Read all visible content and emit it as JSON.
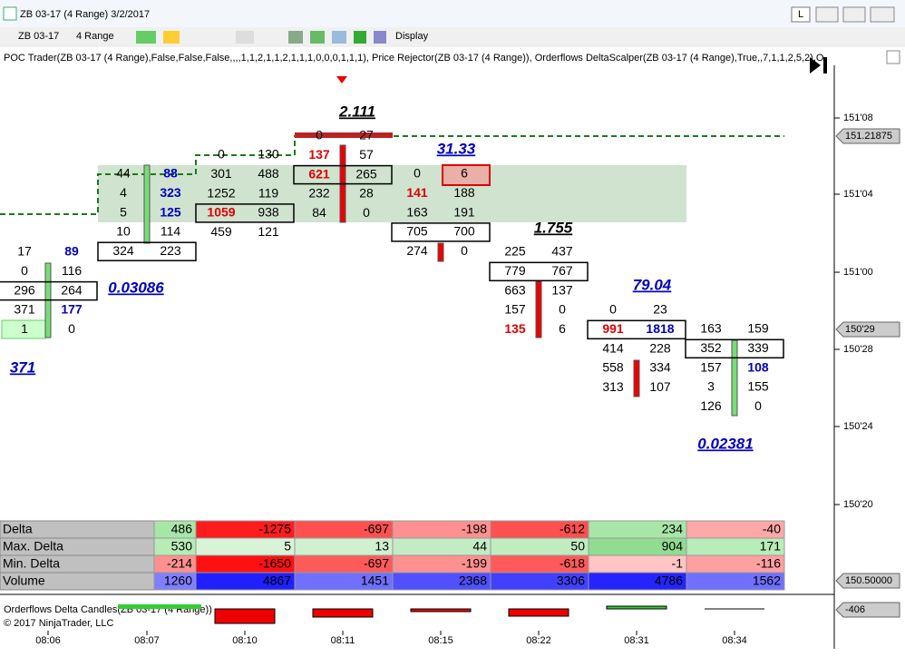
{
  "window": {
    "title": "ZB 03-17 (4 Range)  3/2/2017",
    "buttons": [
      "L"
    ]
  },
  "toolbar": {
    "instrument": "ZB 03-17",
    "interval": "4 Range",
    "display": "Display"
  },
  "indicators": "POC Trader(ZB 03-17 (4 Range),False,False,False,,,,1,1,2,1,1,2,1,1,1,0,0,0,1,1,1), Price Rejector(ZB 03-17 (4 Range)), Orderflows DeltaScalper(ZB 03-17 (4 Range),True,,7,1,1,2,5,2),O",
  "price_axis": {
    "labels": [
      "151'08",
      "151'04",
      "151'00",
      "150'28",
      "150'24",
      "150'20"
    ],
    "markers": [
      "151.21875",
      "150'29",
      "150.50000",
      "-406"
    ]
  },
  "time_axis": [
    "08:06",
    "08:07",
    "08:10",
    "08:11",
    "08:15",
    "08:22",
    "08:31",
    "08:34"
  ],
  "footprint": [
    {
      "rows": [
        [
          17,
          89
        ],
        [
          0,
          116
        ],
        [
          296,
          264
        ],
        [
          371,
          177
        ],
        [
          1,
          0
        ]
      ]
    },
    {
      "rows": [
        [
          44,
          88
        ],
        [
          4,
          323
        ],
        [
          5,
          125
        ],
        [
          10,
          114
        ],
        [
          324,
          223
        ]
      ]
    },
    {
      "rows": [
        [
          0,
          130
        ],
        [
          301,
          488
        ],
        [
          1252,
          119
        ],
        [
          1059,
          938
        ],
        [
          459,
          121
        ]
      ]
    },
    {
      "rows": [
        [
          0,
          27
        ],
        [
          137,
          57
        ],
        [
          621,
          265
        ],
        [
          232,
          28
        ],
        [
          84,
          0
        ]
      ]
    },
    {
      "rows": [
        [
          0,
          6
        ],
        [
          141,
          188
        ],
        [
          163,
          191
        ],
        [
          705,
          700
        ],
        [
          274,
          0
        ]
      ]
    },
    {
      "rows": [
        [
          225,
          437
        ],
        [
          779,
          767
        ],
        [
          663,
          137
        ],
        [
          157,
          0
        ],
        [
          135,
          6
        ]
      ]
    },
    {
      "rows": [
        [
          0,
          23
        ],
        [
          991,
          1818
        ],
        [
          414,
          228
        ],
        [
          558,
          334
        ],
        [
          313,
          107
        ]
      ]
    },
    {
      "rows": [
        [
          163,
          159
        ],
        [
          352,
          339
        ],
        [
          157,
          108
        ],
        [
          3,
          155
        ],
        [
          126,
          0
        ]
      ]
    }
  ],
  "annotations": [
    "0.03086",
    "371",
    "2.111",
    "31.33",
    "1.755",
    "79.04",
    "0.02381"
  ],
  "stats": {
    "rows": [
      {
        "label": "Delta",
        "values": [
          486,
          -1275,
          -697,
          -198,
          -612,
          234,
          -40
        ]
      },
      {
        "label": "Max. Delta",
        "values": [
          530,
          5,
          13,
          44,
          50,
          904,
          171
        ]
      },
      {
        "label": "Min. Delta",
        "values": [
          -214,
          -1650,
          -697,
          -199,
          -618,
          -1,
          -116
        ]
      },
      {
        "label": "Volume",
        "values": [
          1260,
          4867,
          1451,
          2368,
          3306,
          4786,
          1562
        ]
      }
    ]
  },
  "lower_panel": {
    "title": "Orderflows Delta Candles(ZB 03-17 (4 Range))",
    "copyright": "© 2017 NinjaTrader, LLC"
  }
}
